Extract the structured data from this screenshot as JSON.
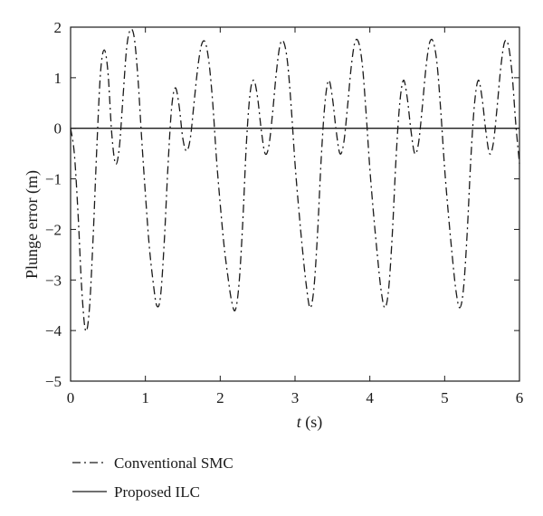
{
  "chart_data": {
    "type": "line",
    "xlabel_italic": "t",
    "xlabel_rest": " (s)",
    "ylabel": "Plunge error (m)",
    "xlim": [
      0,
      6
    ],
    "ylim": [
      -5,
      2
    ],
    "xticks": [
      0,
      1,
      2,
      3,
      4,
      5,
      6
    ],
    "yticks": [
      2,
      1,
      0,
      -1,
      -2,
      -3,
      -4,
      -5
    ],
    "grid": false,
    "legend_position": "bottom-left",
    "series": [
      {
        "name": "Conventional SMC",
        "style": "dash-dot",
        "color": "#1a1a1a",
        "points": [
          [
            0.0,
            0.0
          ],
          [
            0.05,
            -0.5
          ],
          [
            0.1,
            -1.7
          ],
          [
            0.15,
            -3.2
          ],
          [
            0.2,
            -4.0
          ],
          [
            0.25,
            -3.6
          ],
          [
            0.3,
            -2.2
          ],
          [
            0.35,
            -0.4
          ],
          [
            0.4,
            1.1
          ],
          [
            0.45,
            1.55
          ],
          [
            0.5,
            1.1
          ],
          [
            0.55,
            -0.1
          ],
          [
            0.6,
            -0.7
          ],
          [
            0.65,
            -0.4
          ],
          [
            0.7,
            0.6
          ],
          [
            0.75,
            1.6
          ],
          [
            0.8,
            1.95
          ],
          [
            0.85,
            1.8
          ],
          [
            0.9,
            1.0
          ],
          [
            0.95,
            -0.2
          ],
          [
            1.0,
            -1.3
          ],
          [
            1.05,
            -2.3
          ],
          [
            1.1,
            -3.0
          ],
          [
            1.15,
            -3.5
          ],
          [
            1.2,
            -3.35
          ],
          [
            1.25,
            -2.3
          ],
          [
            1.3,
            -0.8
          ],
          [
            1.35,
            0.4
          ],
          [
            1.4,
            0.8
          ],
          [
            1.45,
            0.45
          ],
          [
            1.5,
            -0.2
          ],
          [
            1.55,
            -0.45
          ],
          [
            1.6,
            -0.2
          ],
          [
            1.65,
            0.5
          ],
          [
            1.7,
            1.2
          ],
          [
            1.75,
            1.65
          ],
          [
            1.8,
            1.7
          ],
          [
            1.85,
            1.3
          ],
          [
            1.9,
            0.5
          ],
          [
            1.95,
            -0.6
          ],
          [
            2.0,
            -1.5
          ],
          [
            2.05,
            -2.3
          ],
          [
            2.1,
            -2.9
          ],
          [
            2.15,
            -3.4
          ],
          [
            2.2,
            -3.6
          ],
          [
            2.25,
            -3.1
          ],
          [
            2.3,
            -1.9
          ],
          [
            2.35,
            -0.3
          ],
          [
            2.4,
            0.7
          ],
          [
            2.45,
            0.95
          ],
          [
            2.5,
            0.6
          ],
          [
            2.55,
            -0.05
          ],
          [
            2.6,
            -0.5
          ],
          [
            2.65,
            -0.35
          ],
          [
            2.7,
            0.3
          ],
          [
            2.75,
            1.1
          ],
          [
            2.8,
            1.65
          ],
          [
            2.85,
            1.7
          ],
          [
            2.9,
            1.3
          ],
          [
            2.95,
            0.4
          ],
          [
            3.0,
            -0.7
          ],
          [
            3.05,
            -1.6
          ],
          [
            3.1,
            -2.4
          ],
          [
            3.15,
            -3.1
          ],
          [
            3.2,
            -3.55
          ],
          [
            3.25,
            -3.2
          ],
          [
            3.3,
            -2.1
          ],
          [
            3.35,
            -0.6
          ],
          [
            3.4,
            0.5
          ],
          [
            3.45,
            0.95
          ],
          [
            3.5,
            0.6
          ],
          [
            3.55,
            -0.05
          ],
          [
            3.6,
            -0.5
          ],
          [
            3.65,
            -0.3
          ],
          [
            3.7,
            0.4
          ],
          [
            3.75,
            1.2
          ],
          [
            3.8,
            1.7
          ],
          [
            3.85,
            1.7
          ],
          [
            3.9,
            1.25
          ],
          [
            3.95,
            0.3
          ],
          [
            4.0,
            -0.8
          ],
          [
            4.05,
            -1.7
          ],
          [
            4.1,
            -2.5
          ],
          [
            4.15,
            -3.2
          ],
          [
            4.2,
            -3.55
          ],
          [
            4.25,
            -3.2
          ],
          [
            4.3,
            -2.1
          ],
          [
            4.35,
            -0.6
          ],
          [
            4.4,
            0.5
          ],
          [
            4.45,
            0.95
          ],
          [
            4.5,
            0.6
          ],
          [
            4.55,
            -0.05
          ],
          [
            4.6,
            -0.5
          ],
          [
            4.65,
            -0.3
          ],
          [
            4.7,
            0.4
          ],
          [
            4.75,
            1.2
          ],
          [
            4.8,
            1.7
          ],
          [
            4.85,
            1.7
          ],
          [
            4.9,
            1.25
          ],
          [
            4.95,
            0.3
          ],
          [
            5.0,
            -0.8
          ],
          [
            5.05,
            -1.7
          ],
          [
            5.1,
            -2.5
          ],
          [
            5.15,
            -3.2
          ],
          [
            5.2,
            -3.55
          ],
          [
            5.25,
            -3.2
          ],
          [
            5.3,
            -2.1
          ],
          [
            5.35,
            -0.6
          ],
          [
            5.4,
            0.5
          ],
          [
            5.45,
            0.95
          ],
          [
            5.5,
            0.6
          ],
          [
            5.55,
            -0.05
          ],
          [
            5.6,
            -0.5
          ],
          [
            5.65,
            -0.3
          ],
          [
            5.7,
            0.4
          ],
          [
            5.75,
            1.2
          ],
          [
            5.8,
            1.7
          ],
          [
            5.85,
            1.65
          ],
          [
            5.9,
            1.1
          ],
          [
            5.95,
            0.1
          ],
          [
            6.0,
            -0.7
          ]
        ]
      },
      {
        "name": "Proposed ILC",
        "style": "solid",
        "color": "#1a1a1a",
        "points": [
          [
            0,
            0
          ],
          [
            6,
            0
          ]
        ]
      }
    ]
  }
}
